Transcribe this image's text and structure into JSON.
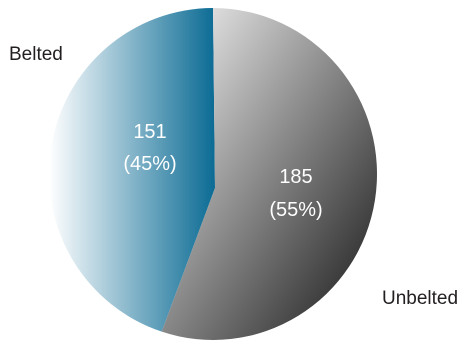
{
  "chart_data": {
    "type": "pie",
    "title": "",
    "slices": [
      {
        "name": "Belted",
        "value": 151,
        "percent_label": "(45%)",
        "color_light": "#ffffff",
        "color_dark": "#0b6b94"
      },
      {
        "name": "Unbelted",
        "value": 185,
        "percent_label": "(55%)",
        "color_light": "#f7f7f7",
        "color_dark": "#141414"
      }
    ]
  }
}
